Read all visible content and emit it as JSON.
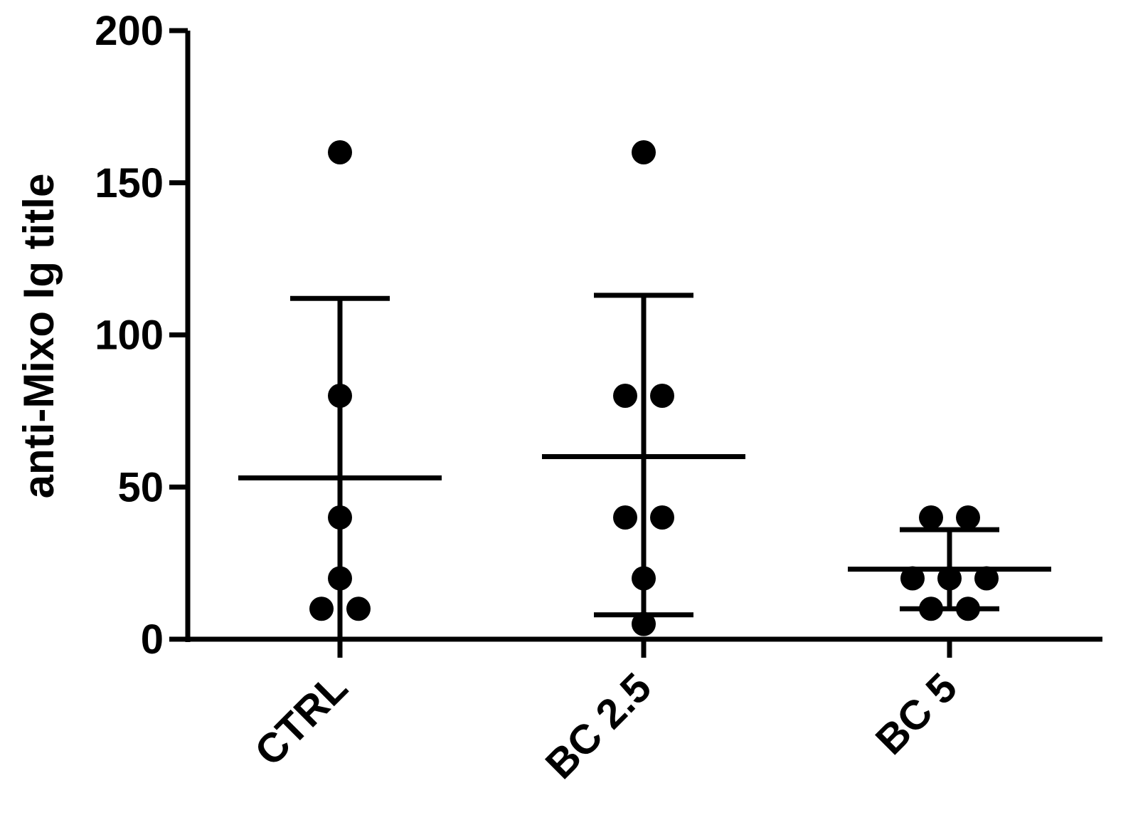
{
  "chart_data": {
    "type": "scatter",
    "ylabel": "anti-Mixo Ig title",
    "xlabel": "",
    "ylim": [
      0,
      200
    ],
    "yticks": [
      0,
      50,
      100,
      150,
      200
    ],
    "categories": [
      "CTRL",
      "BC 2.5",
      "BC 5"
    ],
    "groups": [
      {
        "name": "CTRL",
        "points": [
          160,
          80,
          40,
          20,
          10,
          10
        ],
        "mean": 53,
        "sd_low": -5,
        "sd_high": 112
      },
      {
        "name": "BC 2.5",
        "points": [
          160,
          80,
          80,
          40,
          40,
          20,
          5
        ],
        "mean": 60,
        "sd_low": 8,
        "sd_high": 113
      },
      {
        "name": "BC 5",
        "points": [
          40,
          40,
          20,
          20,
          20,
          10,
          10
        ],
        "mean": 23,
        "sd_low": 10,
        "sd_high": 36
      }
    ],
    "grid": false,
    "colors": {
      "marker": "#000000",
      "axis": "#000000"
    }
  }
}
